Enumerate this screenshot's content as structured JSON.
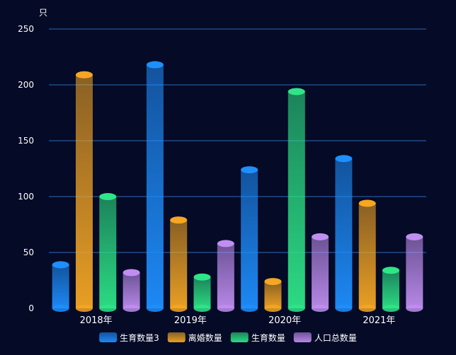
{
  "chart_data": {
    "type": "bar",
    "ylabel": "只",
    "ylim": [
      0,
      250
    ],
    "yticks": [
      0,
      50,
      100,
      150,
      200,
      250
    ],
    "grid": true,
    "legend_position": "bottom-center",
    "categories": [
      "2018年",
      "2019年",
      "2020年",
      "2021年"
    ],
    "series": [
      {
        "name": "生育数量3",
        "values": [
          39,
          218,
          124,
          134
        ],
        "color": "#1e8fff"
      },
      {
        "name": "离婚数量",
        "values": [
          209,
          79,
          24,
          94
        ],
        "color": "#f5a623"
      },
      {
        "name": "生育数量",
        "values": [
          100,
          28,
          194,
          34
        ],
        "color": "#2ee687"
      },
      {
        "name": "人口总数量",
        "values": [
          32,
          58,
          64,
          64
        ],
        "color": "#c08ef0"
      }
    ]
  }
}
